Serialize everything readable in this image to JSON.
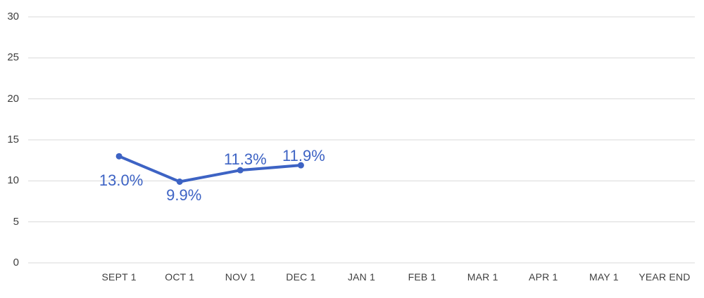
{
  "chart_data": {
    "type": "line",
    "title": "",
    "xlabel": "",
    "ylabel": "",
    "categories": [
      "",
      "SEPT 1",
      "OCT 1",
      "NOV 1",
      "DEC 1",
      "JAN 1",
      "FEB 1",
      "MAR 1",
      "APR 1",
      "MAY 1",
      "YEAR END"
    ],
    "series": [
      {
        "name": "percent-series",
        "values": [
          null,
          13.0,
          9.9,
          11.3,
          11.9,
          null,
          null,
          null,
          null,
          null,
          null
        ],
        "data_labels": [
          null,
          {
            "text": "13.0%",
            "placement": "below",
            "dx": 3,
            "dy": 35
          },
          {
            "text": "9.9%",
            "placement": "below",
            "dx": 6,
            "dy": 19
          },
          {
            "text": "11.3%",
            "placement": "above",
            "dx": 7,
            "dy": -15
          },
          {
            "text": "11.9%",
            "placement": "above",
            "dx": 4,
            "dy": -13
          },
          null,
          null,
          null,
          null,
          null,
          null
        ]
      }
    ],
    "ylim": [
      0,
      30
    ],
    "yticks": [
      0,
      5,
      10,
      15,
      20,
      25,
      30
    ],
    "grid": true,
    "legend": "none",
    "colors": {
      "line": "#3d63c4",
      "marker": "#3d63c4",
      "data_label": "#3d63c4",
      "axis_text": "#3f3f3f",
      "gridline": "#d9d9d9",
      "background": "#ffffff"
    }
  }
}
